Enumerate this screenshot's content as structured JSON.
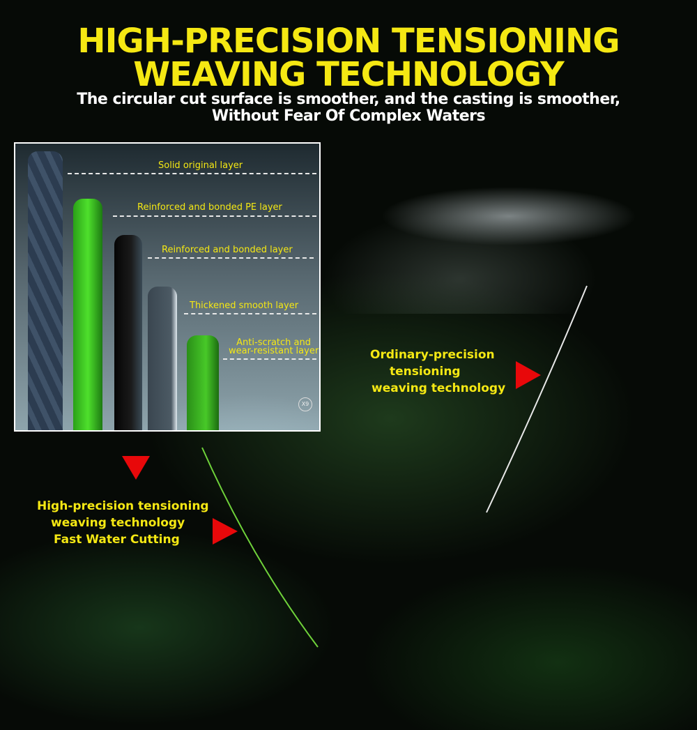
{
  "header": {
    "title_line1": "HIGH-PRECISION TENSIONING",
    "title_line2": "WEAVING TECHNOLOGY",
    "subtitle_line1": "The circular cut surface is smoother, and the casting is smoother,",
    "subtitle_line2": "Without Fear Of Complex Waters"
  },
  "inset": {
    "layers": [
      "Solid original layer",
      "Reinforced and bonded PE layer",
      "Reinforced and bonded  layer",
      "Thickened smooth layer",
      "Anti-scratch and",
      "wear-resistant layer"
    ],
    "badge": "X9"
  },
  "callouts": {
    "ordinary": [
      "Ordinary-precision",
      "tensioning",
      "weaving technology"
    ],
    "high": [
      "High-precision tensioning",
      "weaving technology",
      "Fast Water Cutting"
    ]
  },
  "colors": {
    "accent": "#f5e813",
    "arrow": "#e8080a",
    "line_green": "#6fd23a"
  }
}
